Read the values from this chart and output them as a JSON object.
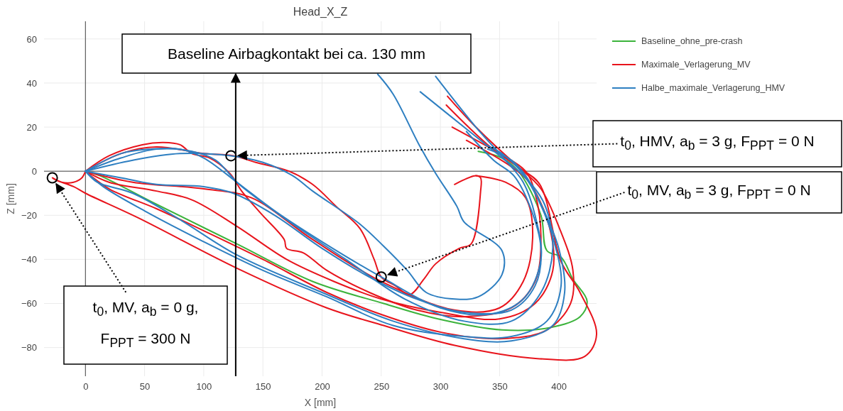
{
  "chart_data": {
    "type": "line",
    "title": "Head_X_Z",
    "xlabel": "X [mm]",
    "ylabel": "Z [mm]",
    "xlim": [
      -35,
      432
    ],
    "ylim": [
      -93,
      68
    ],
    "xticks": [
      0,
      50,
      100,
      150,
      200,
      250,
      300,
      350,
      400
    ],
    "yticks": [
      {
        "value": -80,
        "label": "−80"
      },
      {
        "value": -60,
        "label": "−60"
      },
      {
        "value": -40,
        "label": "−40"
      },
      {
        "value": -20,
        "label": "−20"
      },
      0,
      20,
      40,
      60
    ],
    "grid": true,
    "legend": "top right",
    "line_style": "solid",
    "marker": "none",
    "series": [
      {
        "name": "Baseline_ohne_pre-crash",
        "color": "#3cb33c",
        "x": [
          0,
          12,
          60,
          128,
          192,
          252,
          298,
          352,
          392,
          418,
          424,
          412,
          402,
          390,
          385,
          366,
          352,
          332
        ],
        "values": [
          0,
          -2,
          -15,
          -33,
          -50,
          -60,
          -67,
          -72,
          -71,
          -66,
          -59,
          -49,
          -39,
          -36,
          -20,
          0,
          6,
          9
        ]
      },
      {
        "name": "Maximale_Verlagerung_MV",
        "color": "#e8141c",
        "x": [
          0,
          -3,
          -10,
          -20,
          -28,
          -25,
          -10,
          0,
          44,
          128,
          204,
          252,
          312,
          382,
          422,
          432,
          418,
          402,
          384,
          366,
          330,
          306
        ],
        "values": [
          0,
          -3,
          -5,
          -5,
          -3,
          -4,
          -7,
          -10,
          -21,
          -44,
          -62,
          -70,
          -79,
          -85,
          -84,
          -74,
          -55,
          -41,
          -6,
          2,
          20,
          34
        ]
      },
      {
        "color": "#e8141c",
        "x": [
          0,
          20,
          48,
          66,
          80,
          90,
          105,
          122,
          132,
          148,
          168,
          170,
          184,
          204,
          240,
          280,
          320,
          360,
          380,
          385,
          380,
          372,
          350,
          310
        ],
        "values": [
          0,
          7,
          12,
          13,
          12,
          8,
          6,
          -1,
          -9,
          -19,
          -31,
          -35,
          -37,
          -45,
          -55,
          -63,
          -66,
          -62,
          -50,
          -30,
          -10,
          0,
          8,
          20
        ]
      },
      {
        "color": "#e8141c",
        "x": [
          0,
          30,
          60,
          100,
          125,
          144,
          172,
          192,
          212,
          232,
          244,
          250,
          262,
          274,
          286,
          296,
          316,
          326,
          334,
          334,
          330,
          312
        ],
        "values": [
          0,
          8,
          11,
          8,
          7,
          4,
          0,
          -6,
          -16,
          -26,
          -40,
          -48,
          -52,
          -56,
          -49,
          -42,
          -35,
          -33,
          -9,
          -3,
          -2,
          -6
        ]
      },
      {
        "color": "#e8141c",
        "x": [
          0,
          20,
          60,
          100,
          150,
          204,
          250,
          300,
          350,
          390,
          410,
          412,
          400,
          385,
          370,
          340,
          305
        ],
        "values": [
          0,
          -8,
          -17,
          -27,
          -40,
          -55,
          -65,
          -73,
          -76,
          -72,
          -60,
          -45,
          -25,
          -8,
          0,
          12,
          30
        ]
      },
      {
        "color": "#e8141c",
        "x": [
          0,
          20,
          60,
          90,
          128,
          170,
          210,
          250,
          300,
          350,
          380,
          395,
          392,
          375,
          360,
          322
        ],
        "values": [
          0,
          -5,
          -9,
          -13,
          -25,
          -40,
          -50,
          -58,
          -64,
          -67,
          -60,
          -45,
          -25,
          -5,
          2,
          14
        ]
      },
      {
        "color": "#e8141c",
        "x": [
          0,
          40,
          100,
          140,
          192,
          250,
          312,
          350,
          370,
          378,
          372,
          355,
          330
        ],
        "values": [
          0,
          -5,
          -8,
          -12,
          -31,
          -50,
          -63,
          -62,
          -50,
          -30,
          -12,
          -5,
          -2
        ]
      },
      {
        "name": "Halbe_maximale_Verlagerung_HMV",
        "color": "#2e7fc1",
        "x": [
          0,
          40,
          80,
          123,
          150,
          175,
          192,
          232,
          252,
          272,
          288,
          312,
          332,
          352,
          352,
          320,
          314,
          296,
          282,
          260,
          247
        ],
        "values": [
          0,
          5,
          8,
          7,
          4,
          -2,
          -9,
          -24,
          -34,
          -45,
          -55,
          -58,
          -57,
          -47,
          -36,
          -23,
          -16,
          -1,
          12,
          35,
          44
        ]
      },
      {
        "color": "#2e7fc1",
        "x": [
          0,
          30,
          55,
          80,
          100,
          128,
          160,
          200,
          250,
          300,
          340,
          370,
          385,
          380,
          370,
          355,
          330,
          296
        ],
        "values": [
          0,
          8,
          10,
          10,
          6,
          -5,
          -18,
          -32,
          -48,
          -62,
          -65,
          -58,
          -40,
          -20,
          -5,
          5,
          20,
          43
        ]
      },
      {
        "color": "#2e7fc1",
        "x": [
          0,
          30,
          60,
          90,
          110,
          130,
          170,
          220,
          270,
          320,
          360,
          385,
          395,
          388,
          372,
          350,
          320,
          283
        ],
        "values": [
          0,
          6,
          10,
          9,
          5,
          -6,
          -22,
          -40,
          -58,
          -68,
          -68,
          -55,
          -35,
          -15,
          -3,
          7,
          20,
          36
        ]
      },
      {
        "color": "#2e7fc1",
        "x": [
          0,
          10,
          40,
          80,
          128,
          200,
          260,
          320,
          360,
          395,
          405,
          400,
          385,
          372,
          360,
          340
        ],
        "values": [
          0,
          -5,
          -10,
          -22,
          -38,
          -55,
          -68,
          -76,
          -77,
          -70,
          -55,
          -35,
          -15,
          -2,
          5,
          10
        ]
      },
      {
        "color": "#2e7fc1",
        "x": [
          0,
          15,
          50,
          100,
          150,
          204,
          260,
          320,
          360,
          390,
          402,
          395,
          380,
          368,
          352,
          338
        ],
        "values": [
          0,
          -7,
          -18,
          -32,
          -45,
          -57,
          -70,
          -75,
          -75,
          -68,
          -52,
          -30,
          -10,
          0,
          8,
          12
        ]
      },
      {
        "color": "#2e7fc1",
        "x": [
          0,
          30,
          60,
          100,
          125,
          160,
          200,
          240,
          280,
          320,
          360,
          380,
          385,
          375,
          362,
          345,
          322
        ],
        "values": [
          0,
          -3,
          -6,
          -7,
          -10,
          -20,
          -35,
          -48,
          -58,
          -64,
          -63,
          -52,
          -35,
          -15,
          -2,
          5,
          18
        ]
      }
    ],
    "ref_lines": [
      {
        "axis": "x",
        "value": 127
      }
    ],
    "annotations": [
      "Baseline Airbagkontakt bei ca. 130 mm",
      "t$_{0}$, HMV, a$_{b}$ = 3 g, F$_{PPT}$ = 0 N",
      "t$_{0}$, MV, a$_{b}$ = 3 g, F$_{PPT}$ = 0 N",
      "t$_{0}$, MV, a$_{b}$ = 0 g, F$_{PPT}$ = 300 N"
    ]
  }
}
